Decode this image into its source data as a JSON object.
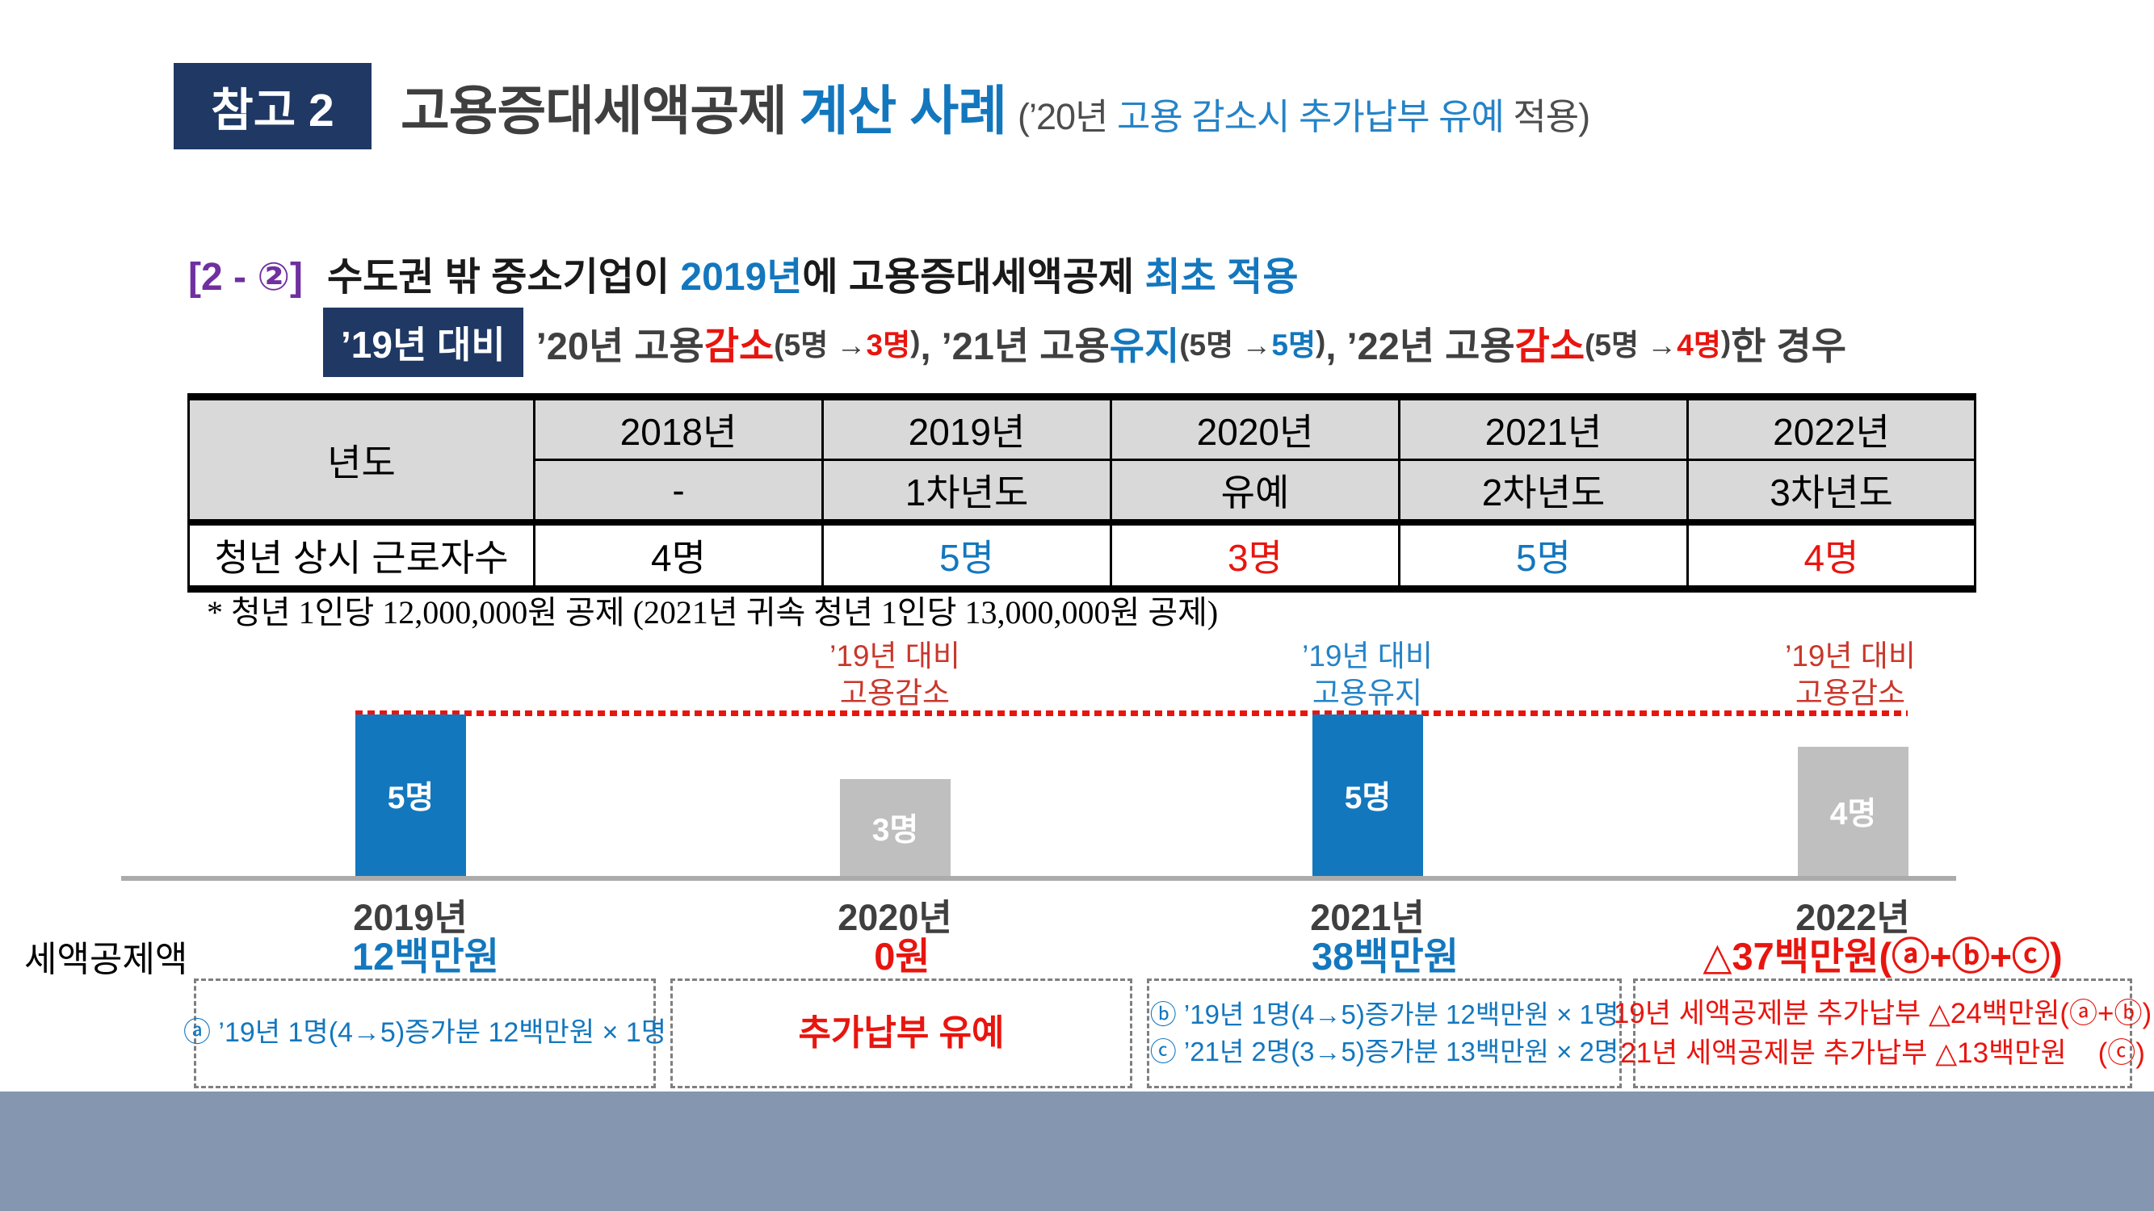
{
  "colors": {
    "navy": "#1F3864",
    "accent_blue": "#1377BE",
    "light_blue": "#2583C7",
    "alert_red": "#E8150F",
    "annotation_red": "#C9372B",
    "purple": "#7030A0",
    "bar_gray": "#BFBFBF",
    "table_header_gray": "#D9D9D9",
    "band_blue_gray": "#8496B0"
  },
  "header": {
    "badge": "참고 2",
    "title_main": "고용증대세액공제",
    "title_accent": "계산 사례",
    "subtitle": {
      "open": "(’20년 ",
      "blue1": "고용 감소시",
      "mid": " ",
      "blue2": "추가납부 유예",
      "close": " 적용)"
    }
  },
  "case": {
    "index": "[2 - ②]",
    "line1": {
      "t1": "수도권 밖 중소기업이 ",
      "blue1": "2019년",
      "t2": "에 고용증대세액공제 ",
      "blue2": "최초 적용"
    },
    "line2_badge": "’19년 대비",
    "line2": [
      "’20년 고용 ",
      "감소",
      "(5명 → ",
      "3명",
      ")",
      ", ’21년 고용 ",
      "유지",
      "(5명 → ",
      "5명",
      ")",
      ", ’22년 고용 ",
      "감소",
      "(5명 → ",
      "4명",
      ")",
      "한 경우"
    ]
  },
  "table": {
    "row_header": "년도",
    "years": [
      "2018년",
      "2019년",
      "2020년",
      "2021년",
      "2022년"
    ],
    "stages": [
      "-",
      "1차년도",
      "유예",
      "2차년도",
      "3차년도"
    ],
    "data_row_label": "청년 상시 근로자수",
    "values": [
      "4명",
      "5명",
      "3명",
      "5명",
      "4명"
    ],
    "value_colors": [
      "black",
      "blue",
      "red",
      "blue",
      "red"
    ]
  },
  "footnote": "* 청년 1인당 12,000,000원 공제 (2021년 귀속 청년 1인당 13,000,000원 공제)",
  "chart_data": {
    "type": "bar",
    "categories": [
      "2019년",
      "2020년",
      "2021년",
      "2022년"
    ],
    "values": [
      5,
      3,
      5,
      4
    ],
    "bar_labels": [
      "5명",
      "3명",
      "5명",
      "4명"
    ],
    "bar_colors": [
      "#1377BE",
      "#BFBFBF",
      "#1377BE",
      "#BFBFBF"
    ],
    "ylim": [
      0,
      5
    ],
    "grid": false,
    "legend_position": "none",
    "reference_line": {
      "value": 5,
      "style": "dotted",
      "color": "#E8150F"
    },
    "annotations": [
      {
        "target": "2020년",
        "line1": "’19년 대비",
        "line2": "고용감소",
        "color": "#C9372B"
      },
      {
        "target": "2021년",
        "line1": "’19년 대비",
        "line2": "고용유지",
        "color": "#2583C7"
      },
      {
        "target": "2022년",
        "line1": "’19년 대비",
        "line2": "고용감소",
        "color": "#C9372B"
      }
    ]
  },
  "credit": {
    "label": "세액공제액",
    "values": [
      "12백만원",
      "0원",
      "38백만원",
      "△37백만원(ⓐ+ⓑ+ⓒ)"
    ],
    "value_colors": [
      "blue",
      "red",
      "blue",
      "red"
    ],
    "boxes": [
      {
        "lines": [
          "ⓐ ’19년 1명(4→5)증가분 12백만원 × 1명"
        ]
      },
      {
        "lines": [
          "추가납부 유예"
        ]
      },
      {
        "lines": [
          "ⓑ ’19년 1명(4→5)증가분 12백만원 × 1명",
          "ⓒ ’21년 2명(3→5)증가분 13백만원 × 2명"
        ]
      },
      {
        "lines": [
          "19년 세액공제분 추가납부 △24백만원(ⓐ+ⓑ)",
          "21년 세액공제분 추가납부 △13백만원    (ⓒ)"
        ]
      }
    ]
  }
}
